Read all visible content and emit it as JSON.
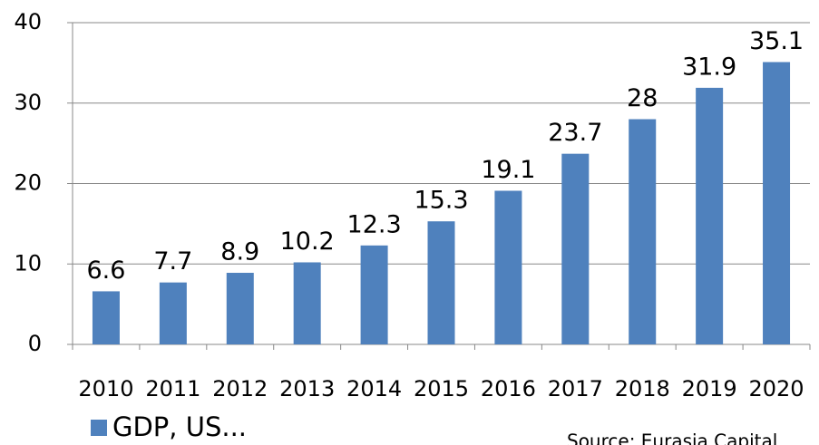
{
  "chart_data": {
    "type": "bar",
    "categories": [
      "2010",
      "2011",
      "2012",
      "2013",
      "2014",
      "2015",
      "2016",
      "2017",
      "2018",
      "2019",
      "2020"
    ],
    "series": [
      {
        "name": "GDP, US...",
        "color": "#4f81bd",
        "values": [
          6.6,
          7.7,
          8.9,
          10.2,
          12.3,
          15.3,
          19.1,
          23.7,
          28,
          31.9,
          35.1
        ]
      }
    ],
    "ylim": [
      0,
      40
    ],
    "yticks": [
      0,
      10,
      20,
      30,
      40
    ],
    "grid": true,
    "source": "Source: Eurasia Capital"
  }
}
